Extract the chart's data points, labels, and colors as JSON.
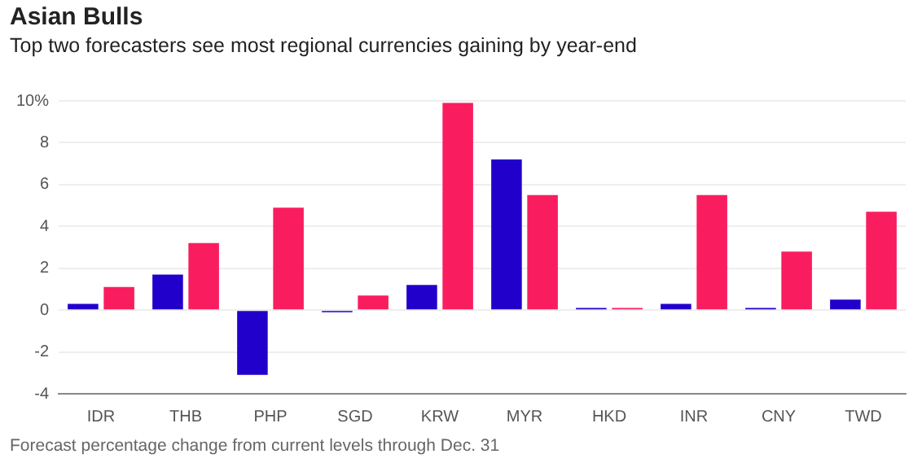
{
  "chart_data": {
    "type": "bar",
    "title": "Asian Bulls",
    "subtitle": "Top two forecasters see most regional currencies gaining by year-end",
    "categories": [
      "IDR",
      "THB",
      "PHP",
      "SGD",
      "KRW",
      "MYR",
      "HKD",
      "INR",
      "CNY",
      "TWD"
    ],
    "series": [
      {
        "color": "#2200cc",
        "values": [
          0.3,
          1.7,
          -3.1,
          -0.1,
          1.2,
          7.2,
          0.1,
          0.3,
          0.1,
          0.5
        ]
      },
      {
        "color": "#f91d5f",
        "values": [
          1.1,
          3.2,
          4.9,
          0.7,
          9.9,
          5.5,
          0.1,
          5.5,
          2.8,
          4.7
        ]
      }
    ],
    "ylim": [
      -4,
      10
    ],
    "yticks": [
      -4,
      -2,
      0,
      2,
      4,
      6,
      8,
      {
        "value": 10,
        "label": "10%"
      }
    ],
    "grid": "y",
    "annotations": [
      "Forecast percentage change from current levels through Dec. 31"
    ]
  }
}
